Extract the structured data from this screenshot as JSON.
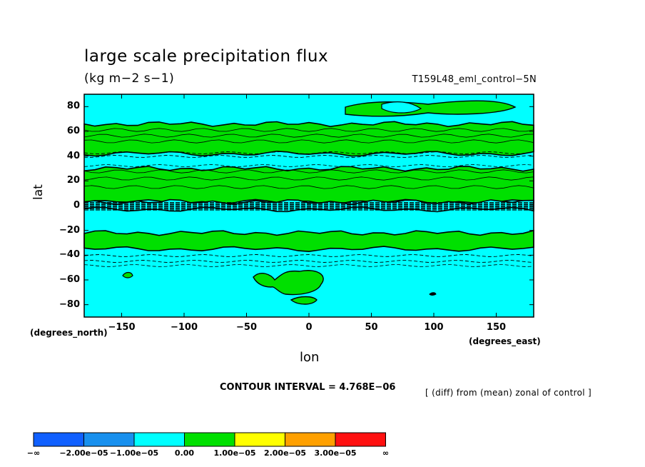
{
  "chart_data": {
    "type": "heatmap",
    "title": "large scale precipitation flux",
    "units": "(kg m−2 s−1)",
    "run_label": "T159L48_eml_control−5N",
    "xlabel": "lon",
    "ylabel": "lat",
    "x_unit_label": "(degrees_east)",
    "y_unit_label": "(degrees_north)",
    "xlim": [
      -180,
      180
    ],
    "ylim": [
      -90,
      90
    ],
    "x_ticks": [
      -150,
      -100,
      -50,
      0,
      50,
      100,
      150
    ],
    "x_tick_labels": [
      "−150",
      "−100",
      "−50",
      "0",
      "50",
      "100",
      "150"
    ],
    "y_ticks": [
      80,
      60,
      40,
      20,
      0,
      -20,
      -40,
      -60,
      -80
    ],
    "y_tick_labels": [
      "80",
      "60",
      "40",
      "20",
      "0",
      "−20",
      "−40",
      "−60",
      "−80"
    ],
    "contour_interval_text": "CONTOUR INTERVAL = 4.768E−06",
    "note": "[ (diff) from (mean) zonal of control ]",
    "background_class": "-1.00e-05..0.00",
    "bands": [
      {
        "class": "0.00..1.00e-05",
        "lat_range": [
          42,
          66
        ]
      },
      {
        "class": "0.00..1.00e-05",
        "lat_range": [
          3,
          30
        ]
      },
      {
        "class": "0.00..1.00e-05",
        "lat_range": [
          -35,
          -22
        ]
      },
      {
        "class": "-1.00e-05..0.00",
        "lat_range": [
          -3,
          3
        ]
      }
    ],
    "colorbar": {
      "colors": [
        "#1060ff",
        "#1890ee",
        "#00ffff",
        "#00e000",
        "#ffff00",
        "#ffa000",
        "#ff1010"
      ],
      "labels": [
        "−∞",
        "−2.00e−05",
        "−1.00e−05",
        "0.00",
        "1.00e−05",
        "2.00e−05",
        "3.00e−05",
        "∞"
      ]
    }
  }
}
